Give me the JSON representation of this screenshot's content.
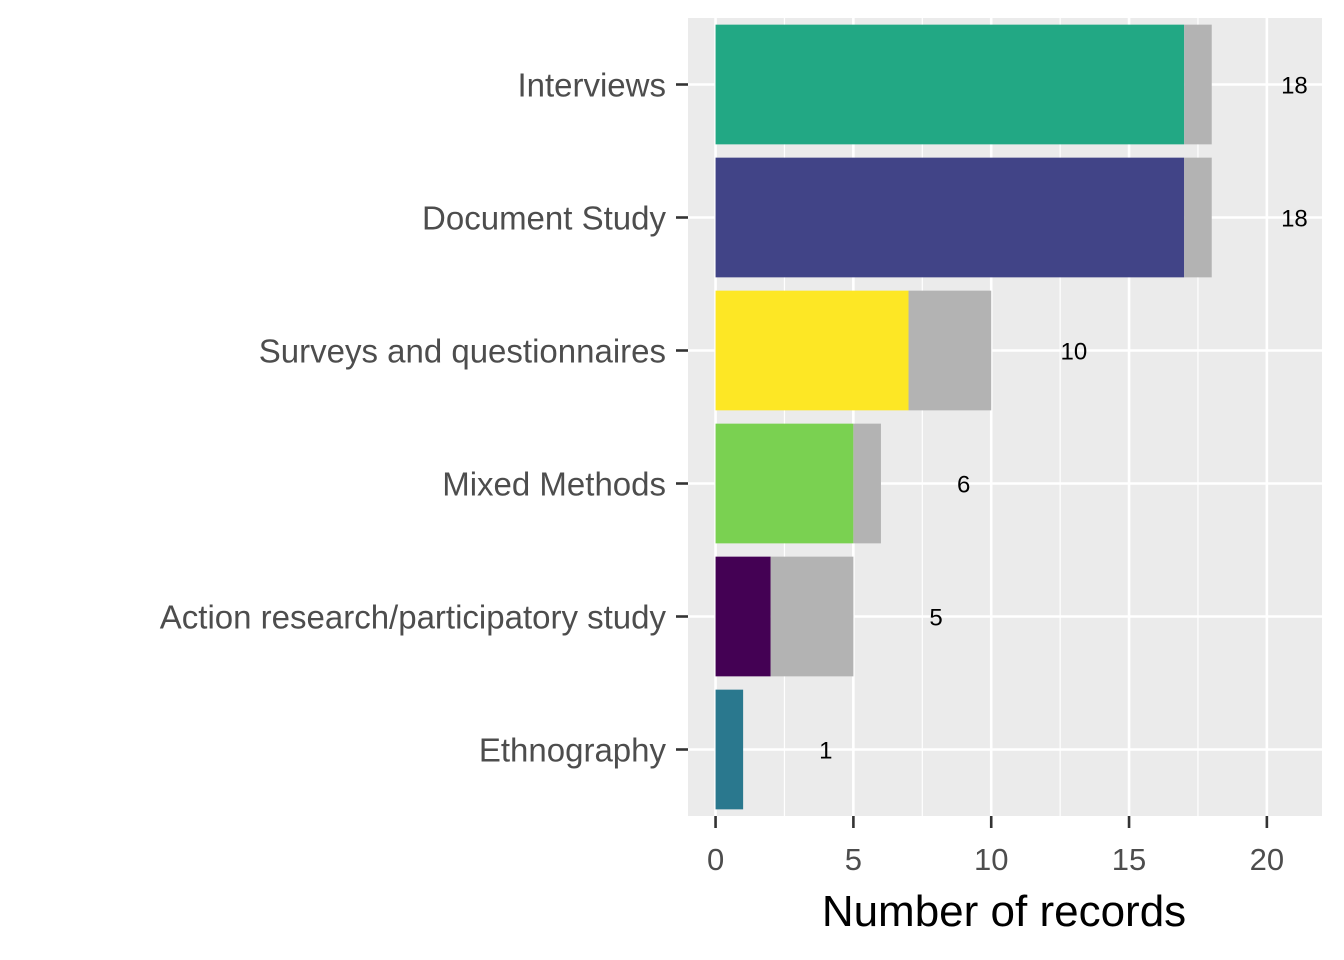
{
  "chart_data": {
    "type": "bar",
    "orientation": "horizontal",
    "stacked": true,
    "categories": [
      "Interviews",
      "Document Study",
      "Surveys and questionnaires",
      "Mixed Methods",
      "Action research/participatory study",
      "Ethnography"
    ],
    "series": [
      {
        "values": [
          17,
          17,
          7,
          5,
          2,
          1
        ]
      },
      {
        "values": [
          1,
          1,
          3,
          1,
          3,
          0
        ]
      }
    ],
    "totals": [
      "18",
      "18",
      "10",
      "6",
      "5",
      "1"
    ],
    "category_colors": [
      "#22A884",
      "#414487",
      "#FDE725",
      "#7AD151",
      "#440154",
      "#2A788E"
    ],
    "remainder_color": "#B3B3B3",
    "xlabel": "Number of records",
    "ylabel": "",
    "x_ticks": [
      "0",
      "5",
      "10",
      "15",
      "20"
    ],
    "xlim": [
      -1,
      22
    ],
    "grid": true,
    "legend": "none"
  }
}
